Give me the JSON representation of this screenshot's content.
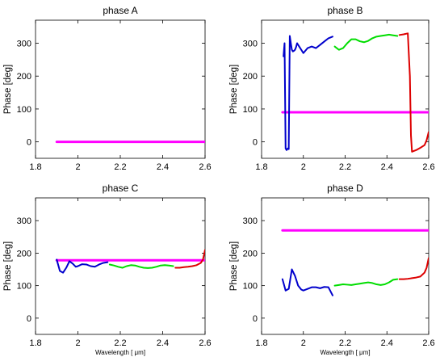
{
  "chart_data": [
    {
      "type": "line",
      "title": "phase A",
      "ylabel": "Phase [deg]",
      "xlabel": "",
      "xlim": [
        1.8,
        2.6
      ],
      "ylim": [
        -50,
        370
      ],
      "xticks": [
        1.8,
        2,
        2.2,
        2.4,
        2.6
      ],
      "xtick_labels": [
        "1.8",
        "2",
        "2.2",
        "2.4",
        "2.6"
      ],
      "yticks": [
        0,
        100,
        200,
        300
      ],
      "ytick_labels": [
        "0",
        "100",
        "200",
        "300"
      ],
      "series": [
        {
          "color": "#ff00ff",
          "thick": true,
          "x": [
            1.9,
            2.6
          ],
          "y": [
            0,
            0
          ]
        }
      ]
    },
    {
      "type": "line",
      "title": "phase B",
      "ylabel": "Phase [deg]",
      "xlabel": "",
      "xlim": [
        1.8,
        2.6
      ],
      "ylim": [
        -50,
        370
      ],
      "xticks": [
        1.8,
        2,
        2.2,
        2.4,
        2.6
      ],
      "xtick_labels": [
        "1.8",
        "2",
        "2.2",
        "2.4",
        "2.6"
      ],
      "yticks": [
        0,
        100,
        200,
        300
      ],
      "ytick_labels": [
        "0",
        "100",
        "200",
        "300"
      ],
      "series": [
        {
          "color": "#ff00ff",
          "thick": true,
          "x": [
            1.9,
            2.6
          ],
          "y": [
            90,
            90
          ]
        },
        {
          "color": "#0000cc",
          "x": [
            1.905,
            1.91,
            1.915,
            1.92,
            1.925,
            1.93,
            1.935,
            1.94,
            1.945,
            1.95,
            1.955,
            1.96,
            1.965,
            1.97,
            1.98,
            1.99,
            2.0,
            2.02,
            2.04,
            2.06,
            2.08,
            2.1,
            2.12,
            2.14
          ],
          "y": [
            260,
            300,
            -20,
            -25,
            -20,
            -22,
            322,
            300,
            280,
            275,
            277,
            280,
            288,
            300,
            290,
            280,
            270,
            285,
            290,
            285,
            295,
            305,
            315,
            320
          ]
        },
        {
          "color": "#00dd00",
          "x": [
            2.15,
            2.17,
            2.19,
            2.21,
            2.23,
            2.25,
            2.27,
            2.29,
            2.31,
            2.33,
            2.35,
            2.37,
            2.39,
            2.41,
            2.43,
            2.45
          ],
          "y": [
            290,
            280,
            285,
            300,
            312,
            312,
            306,
            303,
            307,
            315,
            320,
            322,
            324,
            326,
            324,
            322
          ]
        },
        {
          "color": "#dd0000",
          "x": [
            2.46,
            2.48,
            2.5,
            2.51,
            2.515,
            2.52,
            2.54,
            2.56,
            2.58,
            2.59,
            2.6
          ],
          "y": [
            325,
            327,
            330,
            200,
            20,
            -30,
            -25,
            -18,
            -10,
            5,
            30
          ]
        }
      ]
    },
    {
      "type": "line",
      "title": "phase C",
      "ylabel": "Phase [deg]",
      "xlabel": "Wavelength [ μm]",
      "xlim": [
        1.8,
        2.6
      ],
      "ylim": [
        -50,
        370
      ],
      "xticks": [
        1.8,
        2,
        2.2,
        2.4,
        2.6
      ],
      "xtick_labels": [
        "1.8",
        "2",
        "2.2",
        "2.4",
        "2.6"
      ],
      "yticks": [
        0,
        100,
        200,
        300
      ],
      "ytick_labels": [
        "0",
        "100",
        "200",
        "300"
      ],
      "series": [
        {
          "color": "#ff00ff",
          "thick": true,
          "x": [
            1.9,
            2.6
          ],
          "y": [
            178,
            178
          ]
        },
        {
          "color": "#0000cc",
          "x": [
            1.9,
            1.915,
            1.93,
            1.945,
            1.96,
            1.975,
            1.99,
            2.0,
            2.02,
            2.04,
            2.06,
            2.08,
            2.1,
            2.12,
            2.14
          ],
          "y": [
            180,
            145,
            140,
            155,
            175,
            168,
            158,
            160,
            166,
            165,
            160,
            158,
            165,
            170,
            172
          ]
        },
        {
          "color": "#00dd00",
          "x": [
            2.15,
            2.17,
            2.19,
            2.21,
            2.23,
            2.25,
            2.27,
            2.29,
            2.31,
            2.33,
            2.35,
            2.37,
            2.39,
            2.41,
            2.43,
            2.45
          ],
          "y": [
            165,
            162,
            158,
            155,
            160,
            163,
            162,
            158,
            155,
            154,
            155,
            158,
            162,
            163,
            162,
            160
          ]
        },
        {
          "color": "#dd0000",
          "x": [
            2.46,
            2.48,
            2.5,
            2.52,
            2.54,
            2.56,
            2.58,
            2.59,
            2.6
          ],
          "y": [
            155,
            155,
            157,
            158,
            160,
            163,
            170,
            180,
            210
          ]
        }
      ]
    },
    {
      "type": "line",
      "title": "phase D",
      "ylabel": "Phase [deg]",
      "xlabel": "Wavelength [ μm]",
      "xlim": [
        1.8,
        2.6
      ],
      "ylim": [
        -50,
        370
      ],
      "xticks": [
        1.8,
        2,
        2.2,
        2.4,
        2.6
      ],
      "xtick_labels": [
        "1.8",
        "2",
        "2.2",
        "2.4",
        "2.6"
      ],
      "yticks": [
        0,
        100,
        200,
        300
      ],
      "ytick_labels": [
        "0",
        "100",
        "200",
        "300"
      ],
      "series": [
        {
          "color": "#ff00ff",
          "thick": true,
          "x": [
            1.9,
            2.6
          ],
          "y": [
            270,
            270
          ]
        },
        {
          "color": "#0000cc",
          "x": [
            1.9,
            1.915,
            1.93,
            1.945,
            1.96,
            1.975,
            1.99,
            2.0,
            2.02,
            2.04,
            2.06,
            2.08,
            2.1,
            2.12,
            2.14
          ],
          "y": [
            120,
            85,
            90,
            150,
            130,
            100,
            88,
            85,
            90,
            95,
            95,
            92,
            96,
            95,
            70
          ]
        },
        {
          "color": "#00dd00",
          "x": [
            2.15,
            2.17,
            2.19,
            2.21,
            2.23,
            2.25,
            2.27,
            2.29,
            2.31,
            2.33,
            2.35,
            2.37,
            2.39,
            2.41,
            2.43,
            2.45
          ],
          "y": [
            100,
            102,
            104,
            103,
            102,
            104,
            106,
            108,
            110,
            108,
            104,
            102,
            104,
            110,
            118,
            120
          ]
        },
        {
          "color": "#dd0000",
          "x": [
            2.46,
            2.48,
            2.5,
            2.52,
            2.54,
            2.56,
            2.58,
            2.59,
            2.6
          ],
          "y": [
            120,
            120,
            121,
            123,
            125,
            128,
            140,
            155,
            185
          ]
        }
      ]
    }
  ]
}
